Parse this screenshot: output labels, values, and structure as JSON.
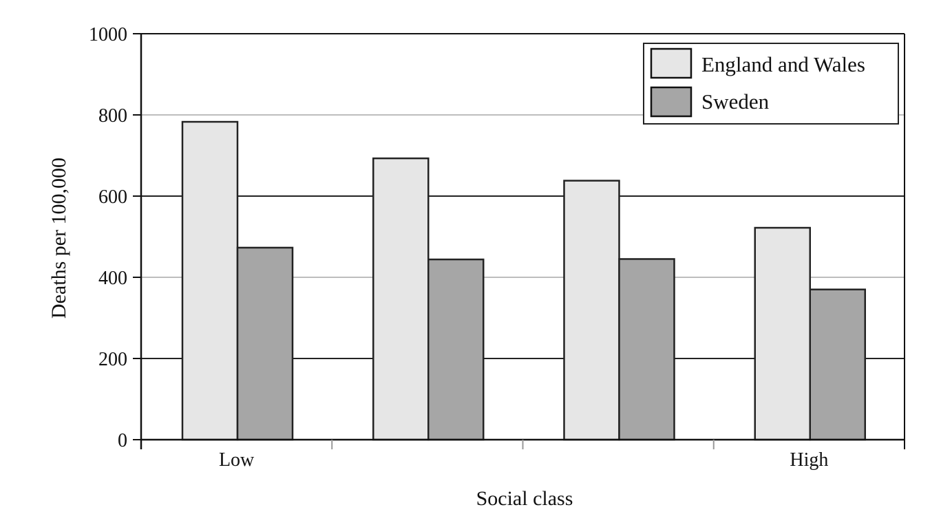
{
  "chart_data": {
    "type": "bar",
    "categories": [
      "Low",
      "",
      "",
      "High"
    ],
    "series": [
      {
        "name": "England and Wales",
        "values": [
          783,
          693,
          638,
          522
        ],
        "color": "#e6e6e6"
      },
      {
        "name": "Sweden",
        "values": [
          473,
          444,
          445,
          370
        ],
        "color": "#a6a6a6"
      }
    ],
    "xlabel": "Social class",
    "ylabel": "Deaths per 100,000",
    "ylim": [
      0,
      1000
    ],
    "yticks": [
      0,
      200,
      400,
      600,
      800,
      1000
    ],
    "ytick_labels": [
      "0",
      "200",
      "400",
      "600",
      "800",
      "1000"
    ],
    "grid": true,
    "legend_position": "top-right"
  }
}
